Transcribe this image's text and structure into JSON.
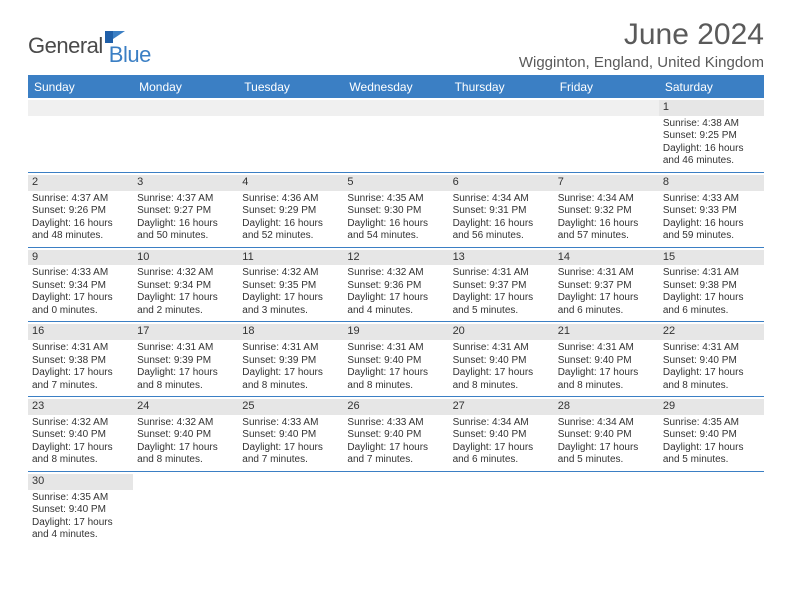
{
  "logo": {
    "part1": "General",
    "part2": "Blue"
  },
  "title": "June 2024",
  "location": "Wigginton, England, United Kingdom",
  "colors": {
    "accent": "#3b7fc4",
    "gray_bg": "#e6e6e6",
    "empty_bg": "#f0f0f0"
  },
  "day_headers": [
    "Sunday",
    "Monday",
    "Tuesday",
    "Wednesday",
    "Thursday",
    "Friday",
    "Saturday"
  ],
  "weeks": [
    [
      {
        "empty": true
      },
      {
        "empty": true
      },
      {
        "empty": true
      },
      {
        "empty": true
      },
      {
        "empty": true
      },
      {
        "empty": true
      },
      {
        "num": "1",
        "sunrise": "Sunrise: 4:38 AM",
        "sunset": "Sunset: 9:25 PM",
        "d1": "Daylight: 16 hours",
        "d2": "and 46 minutes."
      }
    ],
    [
      {
        "num": "2",
        "sunrise": "Sunrise: 4:37 AM",
        "sunset": "Sunset: 9:26 PM",
        "d1": "Daylight: 16 hours",
        "d2": "and 48 minutes."
      },
      {
        "num": "3",
        "sunrise": "Sunrise: 4:37 AM",
        "sunset": "Sunset: 9:27 PM",
        "d1": "Daylight: 16 hours",
        "d2": "and 50 minutes."
      },
      {
        "num": "4",
        "sunrise": "Sunrise: 4:36 AM",
        "sunset": "Sunset: 9:29 PM",
        "d1": "Daylight: 16 hours",
        "d2": "and 52 minutes."
      },
      {
        "num": "5",
        "sunrise": "Sunrise: 4:35 AM",
        "sunset": "Sunset: 9:30 PM",
        "d1": "Daylight: 16 hours",
        "d2": "and 54 minutes."
      },
      {
        "num": "6",
        "sunrise": "Sunrise: 4:34 AM",
        "sunset": "Sunset: 9:31 PM",
        "d1": "Daylight: 16 hours",
        "d2": "and 56 minutes."
      },
      {
        "num": "7",
        "sunrise": "Sunrise: 4:34 AM",
        "sunset": "Sunset: 9:32 PM",
        "d1": "Daylight: 16 hours",
        "d2": "and 57 minutes."
      },
      {
        "num": "8",
        "sunrise": "Sunrise: 4:33 AM",
        "sunset": "Sunset: 9:33 PM",
        "d1": "Daylight: 16 hours",
        "d2": "and 59 minutes."
      }
    ],
    [
      {
        "num": "9",
        "sunrise": "Sunrise: 4:33 AM",
        "sunset": "Sunset: 9:34 PM",
        "d1": "Daylight: 17 hours",
        "d2": "and 0 minutes."
      },
      {
        "num": "10",
        "sunrise": "Sunrise: 4:32 AM",
        "sunset": "Sunset: 9:34 PM",
        "d1": "Daylight: 17 hours",
        "d2": "and 2 minutes."
      },
      {
        "num": "11",
        "sunrise": "Sunrise: 4:32 AM",
        "sunset": "Sunset: 9:35 PM",
        "d1": "Daylight: 17 hours",
        "d2": "and 3 minutes."
      },
      {
        "num": "12",
        "sunrise": "Sunrise: 4:32 AM",
        "sunset": "Sunset: 9:36 PM",
        "d1": "Daylight: 17 hours",
        "d2": "and 4 minutes."
      },
      {
        "num": "13",
        "sunrise": "Sunrise: 4:31 AM",
        "sunset": "Sunset: 9:37 PM",
        "d1": "Daylight: 17 hours",
        "d2": "and 5 minutes."
      },
      {
        "num": "14",
        "sunrise": "Sunrise: 4:31 AM",
        "sunset": "Sunset: 9:37 PM",
        "d1": "Daylight: 17 hours",
        "d2": "and 6 minutes."
      },
      {
        "num": "15",
        "sunrise": "Sunrise: 4:31 AM",
        "sunset": "Sunset: 9:38 PM",
        "d1": "Daylight: 17 hours",
        "d2": "and 6 minutes."
      }
    ],
    [
      {
        "num": "16",
        "sunrise": "Sunrise: 4:31 AM",
        "sunset": "Sunset: 9:38 PM",
        "d1": "Daylight: 17 hours",
        "d2": "and 7 minutes."
      },
      {
        "num": "17",
        "sunrise": "Sunrise: 4:31 AM",
        "sunset": "Sunset: 9:39 PM",
        "d1": "Daylight: 17 hours",
        "d2": "and 8 minutes."
      },
      {
        "num": "18",
        "sunrise": "Sunrise: 4:31 AM",
        "sunset": "Sunset: 9:39 PM",
        "d1": "Daylight: 17 hours",
        "d2": "and 8 minutes."
      },
      {
        "num": "19",
        "sunrise": "Sunrise: 4:31 AM",
        "sunset": "Sunset: 9:40 PM",
        "d1": "Daylight: 17 hours",
        "d2": "and 8 minutes."
      },
      {
        "num": "20",
        "sunrise": "Sunrise: 4:31 AM",
        "sunset": "Sunset: 9:40 PM",
        "d1": "Daylight: 17 hours",
        "d2": "and 8 minutes."
      },
      {
        "num": "21",
        "sunrise": "Sunrise: 4:31 AM",
        "sunset": "Sunset: 9:40 PM",
        "d1": "Daylight: 17 hours",
        "d2": "and 8 minutes."
      },
      {
        "num": "22",
        "sunrise": "Sunrise: 4:31 AM",
        "sunset": "Sunset: 9:40 PM",
        "d1": "Daylight: 17 hours",
        "d2": "and 8 minutes."
      }
    ],
    [
      {
        "num": "23",
        "sunrise": "Sunrise: 4:32 AM",
        "sunset": "Sunset: 9:40 PM",
        "d1": "Daylight: 17 hours",
        "d2": "and 8 minutes."
      },
      {
        "num": "24",
        "sunrise": "Sunrise: 4:32 AM",
        "sunset": "Sunset: 9:40 PM",
        "d1": "Daylight: 17 hours",
        "d2": "and 8 minutes."
      },
      {
        "num": "25",
        "sunrise": "Sunrise: 4:33 AM",
        "sunset": "Sunset: 9:40 PM",
        "d1": "Daylight: 17 hours",
        "d2": "and 7 minutes."
      },
      {
        "num": "26",
        "sunrise": "Sunrise: 4:33 AM",
        "sunset": "Sunset: 9:40 PM",
        "d1": "Daylight: 17 hours",
        "d2": "and 7 minutes."
      },
      {
        "num": "27",
        "sunrise": "Sunrise: 4:34 AM",
        "sunset": "Sunset: 9:40 PM",
        "d1": "Daylight: 17 hours",
        "d2": "and 6 minutes."
      },
      {
        "num": "28",
        "sunrise": "Sunrise: 4:34 AM",
        "sunset": "Sunset: 9:40 PM",
        "d1": "Daylight: 17 hours",
        "d2": "and 5 minutes."
      },
      {
        "num": "29",
        "sunrise": "Sunrise: 4:35 AM",
        "sunset": "Sunset: 9:40 PM",
        "d1": "Daylight: 17 hours",
        "d2": "and 5 minutes."
      }
    ],
    [
      {
        "num": "30",
        "sunrise": "Sunrise: 4:35 AM",
        "sunset": "Sunset: 9:40 PM",
        "d1": "Daylight: 17 hours",
        "d2": "and 4 minutes."
      },
      {
        "empty": true
      },
      {
        "empty": true
      },
      {
        "empty": true
      },
      {
        "empty": true
      },
      {
        "empty": true
      },
      {
        "empty": true
      }
    ]
  ]
}
